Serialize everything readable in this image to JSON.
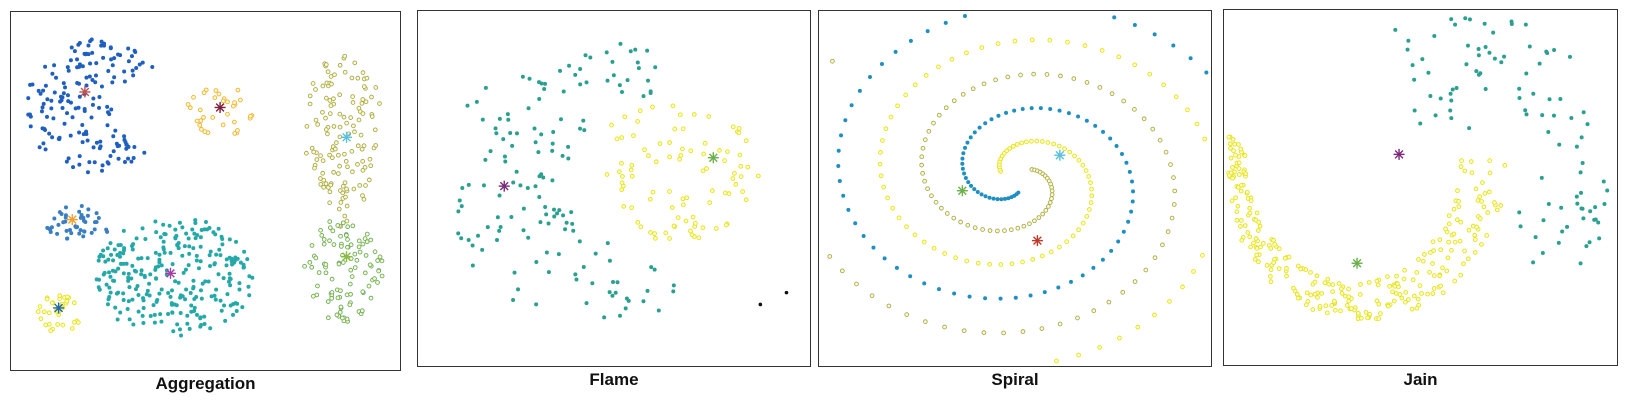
{
  "panels": [
    {
      "caption": "Aggregation"
    },
    {
      "caption": "Flame"
    },
    {
      "caption": "Spiral"
    },
    {
      "caption": "Jain"
    }
  ],
  "chart_data": [
    {
      "type": "scatter",
      "title": "Aggregation",
      "xlim": [
        0,
        40
      ],
      "ylim": [
        0,
        30
      ],
      "marker_colors": {
        "cluster1": "#1f5fbf",
        "cluster2": "#f0b040",
        "cluster3": "#a8a860",
        "cluster4": "#3a7fc0",
        "cluster5": "#24a8a8",
        "cluster6": "#6aaa70",
        "cluster7": "#e6e020"
      },
      "centroid_colors": {
        "cluster1": "#c0504d",
        "cluster2": "#7a1f3d",
        "cluster3": "#5bc0de",
        "cluster4": "#f0a030",
        "cluster5": "#a040a0",
        "cluster6": "#88bb44",
        "cluster7": "#2266aa"
      },
      "clusters": [
        {
          "center": [
            7.6,
            23.3
          ],
          "n": 170
        },
        {
          "center": [
            21.5,
            22.0
          ],
          "n": 34
        },
        {
          "center": [
            34.5,
            19.5
          ],
          "n": 130
        },
        {
          "center": [
            6.3,
            12.6
          ],
          "n": 45
        },
        {
          "center": [
            16.4,
            8.1
          ],
          "n": 273
        },
        {
          "center": [
            34.5,
            9.5
          ],
          "n": 102
        },
        {
          "center": [
            4.9,
            5.2
          ],
          "n": 34
        }
      ]
    },
    {
      "type": "scatter",
      "title": "Flame",
      "xlim": [
        0,
        15
      ],
      "ylim": [
        14,
        29
      ],
      "marker_colors": {
        "cluster1": "#2aa090",
        "cluster2": "#e6e020",
        "outliers": "#111111"
      },
      "centroid_colors": {
        "cluster1": "#7a2a7a",
        "cluster2": "#6ab04c"
      },
      "clusters": [
        {
          "center": [
            3.3,
            21.6
          ],
          "n": 147
        },
        {
          "center": [
            11.3,
            22.8
          ],
          "n": 91
        }
      ],
      "outliers": [
        [
          13.1,
          16.6
        ],
        [
          14.1,
          17.1
        ]
      ]
    },
    {
      "type": "scatter",
      "title": "Spiral",
      "xlim": [
        0,
        35
      ],
      "ylim": [
        0,
        32
      ],
      "marker_colors": {
        "cluster1": "#a8a860",
        "cluster2": "#e6e020",
        "cluster3": "#1e8fc0"
      },
      "centroid_colors": {
        "cluster1": "#5bc0de",
        "cluster2": "#c0392b",
        "cluster3": "#6ab04c"
      },
      "clusters": [
        {
          "center": [
            21.5,
            19.0
          ],
          "n": 106
        },
        {
          "center": [
            19.5,
            11.3
          ],
          "n": 101
        },
        {
          "center": [
            12.8,
            15.8
          ],
          "n": 105
        }
      ]
    },
    {
      "type": "scatter",
      "title": "Jain",
      "xlim": [
        0,
        44
      ],
      "ylim": [
        0,
        30
      ],
      "marker_colors": {
        "cluster1": "#e6e020",
        "cluster2": "#2aa090"
      },
      "centroid_colors": {
        "cluster1": "#6ab04c",
        "cluster2": "#7a2a7a"
      },
      "clusters": [
        {
          "center": [
            14.9,
            8.6
          ],
          "n": 276
        },
        {
          "center": [
            19.6,
            17.8
          ],
          "n": 97
        }
      ]
    }
  ]
}
